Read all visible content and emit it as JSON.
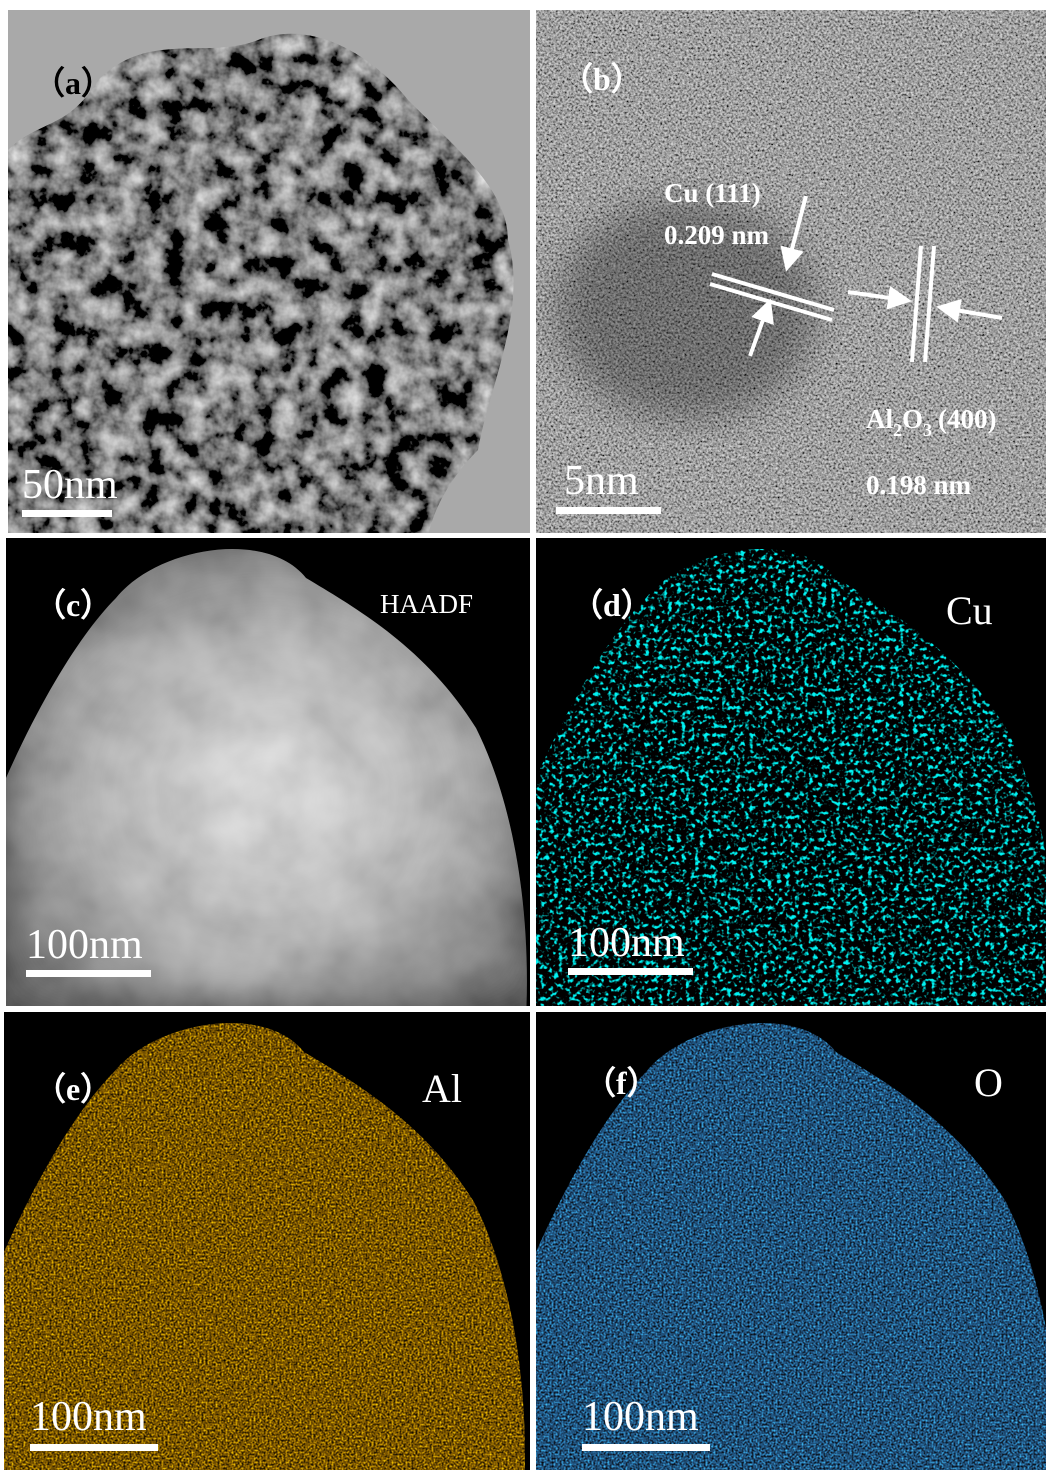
{
  "panels": [
    {
      "label": "（a）",
      "scale_bar": "50nm"
    },
    {
      "label": "（b）",
      "scale_bar": "5nm",
      "annotations": {
        "cu_plane": "Cu (111)",
        "cu_spacing": "0.209 nm",
        "al2o3_plane": [
          "Al",
          "2",
          "O",
          "3",
          "(400)"
        ],
        "al2o3_spacing": "0.198 nm"
      }
    },
    {
      "label": "（c）",
      "scale_bar": "100nm",
      "signal": "HAADF"
    },
    {
      "label": "（d）",
      "scale_bar": "100nm",
      "signal": "Cu"
    },
    {
      "label": "（e）",
      "scale_bar": "100nm",
      "signal": "Al"
    },
    {
      "label": "（f）",
      "scale_bar": "100nm",
      "signal": "O"
    }
  ]
}
